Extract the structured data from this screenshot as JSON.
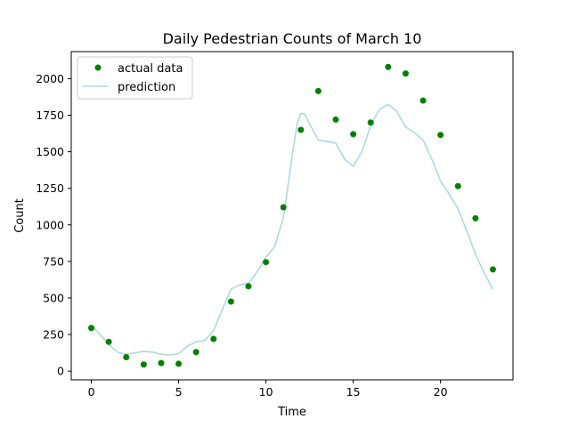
{
  "chart_data": {
    "type": "scatter",
    "title": "Daily Pedestrian Counts of March 10",
    "xlabel": "Time",
    "ylabel": "Count",
    "xlim": [
      -1.15,
      24.15
    ],
    "ylim": [
      -60,
      2185
    ],
    "x_ticks": [
      0,
      5,
      10,
      15,
      20
    ],
    "y_ticks": [
      0,
      250,
      500,
      750,
      1000,
      1250,
      1500,
      1750,
      2000
    ],
    "grid": false,
    "legend_position": "top-left",
    "series": [
      {
        "name": "actual data",
        "kind": "scatter",
        "color": "#008000",
        "x": [
          0,
          1,
          2,
          3,
          4,
          5,
          6,
          7,
          8,
          9,
          10,
          11,
          12,
          13,
          14,
          15,
          16,
          17,
          18,
          19,
          20,
          21,
          22,
          23
        ],
        "y": [
          295,
          200,
          95,
          45,
          55,
          50,
          130,
          220,
          475,
          580,
          745,
          1120,
          1650,
          1915,
          1720,
          1620,
          1700,
          2080,
          2035,
          1850,
          1615,
          1265,
          1045,
          695
        ]
      },
      {
        "name": "prediction",
        "kind": "line",
        "color": "#add8e6",
        "x": [
          0,
          0.5,
          1,
          1.5,
          2,
          2.5,
          3,
          3.5,
          4,
          4.5,
          5,
          5.5,
          6,
          6.5,
          7,
          7.5,
          8,
          8.5,
          9,
          9.5,
          10,
          10.5,
          11,
          11.3,
          11.6,
          11.8,
          12,
          12.2,
          12.5,
          13,
          13.5,
          14,
          14.5,
          15,
          15.5,
          16,
          16.5,
          17,
          17.5,
          18,
          18.5,
          19,
          19.5,
          20,
          20.5,
          21,
          21.5,
          22,
          22.5,
          23
        ],
        "y": [
          310,
          250,
          180,
          130,
          115,
          125,
          135,
          130,
          115,
          110,
          120,
          170,
          200,
          210,
          275,
          420,
          560,
          590,
          600,
          680,
          780,
          850,
          1050,
          1300,
          1550,
          1700,
          1760,
          1760,
          1690,
          1580,
          1570,
          1560,
          1450,
          1400,
          1500,
          1680,
          1790,
          1825,
          1775,
          1670,
          1630,
          1580,
          1450,
          1300,
          1210,
          1110,
          960,
          800,
          670,
          560
        ]
      }
    ]
  }
}
